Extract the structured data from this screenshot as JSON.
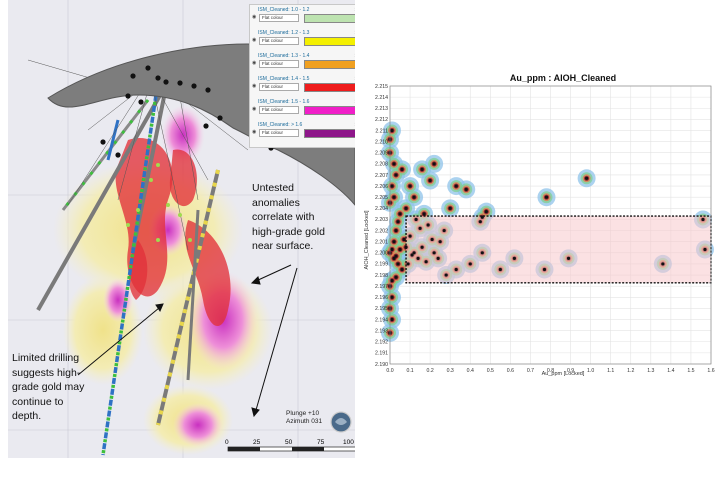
{
  "left_panel": {
    "legend_items": [
      {
        "name": "ISM_Cleaned: 1.0 - 1.2",
        "mode": "Flat colour",
        "color": "#bde3b0"
      },
      {
        "name": "ISM_Cleaned: 1.2 - 1.3",
        "mode": "Flat colour",
        "color": "#f4f000"
      },
      {
        "name": "ISM_Cleaned: 1.3 - 1.4",
        "mode": "Flat colour",
        "color": "#f0a020"
      },
      {
        "name": "ISM_Cleaned: 1.4 - 1.5",
        "mode": "Flat colour",
        "color": "#ee1c1c"
      },
      {
        "name": "ISM_Cleaned: 1.5 - 1.6",
        "mode": "Flat colour",
        "color": "#f01fc8"
      },
      {
        "name": "ISM_Cleaned: > 1.6",
        "mode": "Flat colour",
        "color": "#8e168a"
      }
    ],
    "annotation_right": [
      "Untested",
      "anomalies",
      "correlate with",
      "high-grade gold",
      "near surface."
    ],
    "annotation_left": [
      "Limited drilling",
      "suggests high-",
      "grade gold may",
      "continue to",
      "depth."
    ],
    "plunge": "Plunge +10",
    "azimuth": "Azimuth 031",
    "scale_ticks": [
      "0",
      "25",
      "50",
      "75",
      "100"
    ]
  },
  "chart_data": {
    "type": "scatter",
    "title": "Au_ppm : AlOH_Cleaned",
    "xlabel": "Au_ppm [Locked]",
    "ylabel": "AlOH_Cleaned [Locked]",
    "xlim": [
      0,
      1.6
    ],
    "ylim": [
      2.19,
      2.215
    ],
    "x_ticks": [
      "0.0",
      "0.1",
      "0.2",
      "0.3",
      "0.4",
      "0.5",
      "0.6",
      "0.7",
      "0.8",
      "0.9",
      "1.0",
      "1.1",
      "1.2",
      "1.3",
      "1.4",
      "1.5",
      "1.6"
    ],
    "y_ticks": [
      "2.190",
      "2.191",
      "2.192",
      "2.193",
      "2.194",
      "2.195",
      "2.196",
      "2.197",
      "2.198",
      "2.199",
      "2.200",
      "2.201",
      "2.202",
      "2.203",
      "2.204",
      "2.205",
      "2.206",
      "2.207",
      "2.208",
      "2.209",
      "2.210",
      "2.211",
      "2.212",
      "2.213",
      "2.214",
      "2.215"
    ],
    "grid": true,
    "highlight_box": {
      "x": [
        0.08,
        1.6
      ],
      "y": [
        2.1973,
        2.2033
      ]
    },
    "points": [
      [
        1.56,
        2.203
      ],
      [
        1.57,
        2.2003
      ],
      [
        1.36,
        2.199
      ],
      [
        0.98,
        2.2067
      ],
      [
        0.78,
        2.205
      ],
      [
        0.77,
        2.1985
      ],
      [
        0.89,
        2.1995
      ],
      [
        0.62,
        2.1995
      ],
      [
        0.55,
        2.1985
      ],
      [
        0.38,
        2.2057
      ],
      [
        0.33,
        2.206
      ],
      [
        0.3,
        2.204
      ],
      [
        0.2,
        2.2065
      ],
      [
        0.22,
        2.208
      ],
      [
        0.16,
        2.2075
      ],
      [
        0.48,
        2.2037
      ],
      [
        0.46,
        2.2032
      ],
      [
        0.45,
        2.2028
      ],
      [
        0.46,
        2.2
      ],
      [
        0.4,
        2.199
      ],
      [
        0.33,
        2.1985
      ],
      [
        0.28,
        2.198
      ],
      [
        0.25,
        2.201
      ],
      [
        0.27,
        2.202
      ],
      [
        0.22,
        2.2
      ],
      [
        0.18,
        2.1992
      ],
      [
        0.15,
        2.2022
      ],
      [
        0.12,
        2.205
      ],
      [
        0.1,
        2.206
      ],
      [
        0.08,
        2.204
      ],
      [
        0.06,
        2.2075
      ],
      [
        0.05,
        2.2035
      ],
      [
        0.04,
        2.2028
      ],
      [
        0.03,
        2.202
      ],
      [
        0.02,
        2.201
      ],
      [
        0.01,
        2.2003
      ],
      [
        0.0,
        2.2
      ],
      [
        0.02,
        2.1995
      ],
      [
        0.04,
        2.199
      ],
      [
        0.06,
        2.1985
      ],
      [
        0.08,
        2.2005
      ],
      [
        0.1,
        2.2015
      ],
      [
        0.12,
        2.2
      ],
      [
        0.14,
        2.1995
      ],
      [
        0.09,
        2.199
      ],
      [
        0.01,
        2.211
      ],
      [
        0.0,
        2.2102
      ],
      [
        0.01,
        2.196
      ],
      [
        0.0,
        2.195
      ],
      [
        0.01,
        2.194
      ],
      [
        0.0,
        2.1928
      ],
      [
        0.0,
        2.209
      ],
      [
        0.02,
        2.208
      ],
      [
        0.03,
        2.207
      ],
      [
        0.01,
        2.206
      ],
      [
        0.02,
        2.205
      ],
      [
        0.0,
        2.2045
      ],
      [
        0.01,
        2.1975
      ],
      [
        0.03,
        2.1978
      ],
      [
        0.0,
        2.197
      ],
      [
        0.17,
        2.2035
      ],
      [
        0.19,
        2.2025
      ],
      [
        0.21,
        2.2012
      ],
      [
        0.13,
        2.203
      ],
      [
        0.11,
        2.1998
      ],
      [
        0.07,
        2.2012
      ],
      [
        0.05,
        2.2003
      ],
      [
        0.03,
        2.1997
      ],
      [
        0.16,
        2.2005
      ],
      [
        0.24,
        2.1995
      ]
    ]
  }
}
